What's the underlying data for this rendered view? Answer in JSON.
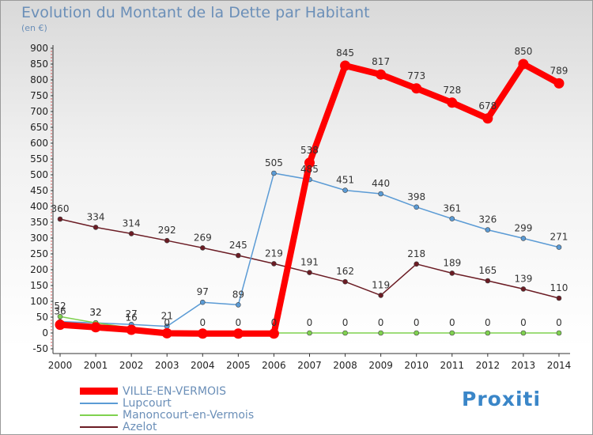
{
  "title": "Evolution du Montant de la Dette par Habitant",
  "unit": "(en €)",
  "logo_text": "Proxiti",
  "chart_data": {
    "type": "line",
    "title": "Evolution du Montant de la Dette par Habitant",
    "ylabel": "(en €)",
    "xlabel": "",
    "ylim": [
      -50,
      900
    ],
    "y_ticks": [
      -50,
      0,
      50,
      100,
      150,
      200,
      250,
      300,
      350,
      400,
      450,
      500,
      550,
      600,
      650,
      700,
      750,
      800,
      850,
      900
    ],
    "x": [
      "2000",
      "2001",
      "2002",
      "2003",
      "2004",
      "2005",
      "2006",
      "2007",
      "2008",
      "2009",
      "2010",
      "2011",
      "2012",
      "2013",
      "2014"
    ],
    "grid": false,
    "legend_position": "bottom-left",
    "series": [
      {
        "name": "Azelot",
        "color": "#6b1c24",
        "values": [
          360,
          334,
          314,
          292,
          269,
          245,
          219,
          191,
          162,
          119,
          218,
          189,
          165,
          139,
          110
        ]
      },
      {
        "name": "Lupcourt",
        "color": "#5b9bd5",
        "values": [
          36,
          32,
          27,
          21,
          97,
          89,
          505,
          485,
          451,
          440,
          398,
          361,
          326,
          299,
          271
        ]
      },
      {
        "name": "Manoncourt-en-Vermois",
        "color": "#7fd14f",
        "values": [
          52,
          32,
          16,
          0,
          0,
          0,
          0,
          0,
          0,
          0,
          0,
          0,
          0,
          0,
          0
        ]
      },
      {
        "name": "VILLE-EN-VERMOIS",
        "color": "#ff0000",
        "values": [
          26,
          18,
          10,
          -1,
          -2,
          -2,
          -2,
          538,
          845,
          817,
          773,
          728,
          678,
          850,
          789
        ],
        "labels": [
          null,
          null,
          null,
          null,
          null,
          null,
          null,
          "538",
          "845",
          "817",
          "773",
          "728",
          "678",
          "850",
          "789"
        ]
      }
    ]
  }
}
